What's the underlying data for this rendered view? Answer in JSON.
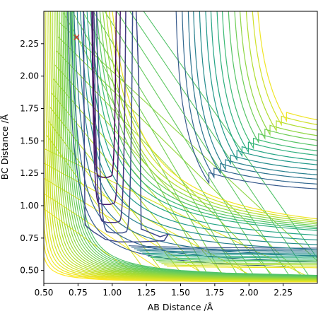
{
  "chart_data": {
    "type": "contour",
    "xlabel": "AB Distance /Å",
    "ylabel": "BC Distance /Å",
    "xlim": [
      0.5,
      2.5
    ],
    "ylim": [
      0.4,
      2.5
    ],
    "xticks": [
      "0.50",
      "0.75",
      "1.00",
      "1.25",
      "1.50",
      "1.75",
      "2.00",
      "2.25"
    ],
    "yticks": [
      "0.50",
      "0.75",
      "1.00",
      "1.25",
      "1.50",
      "1.75",
      "2.00",
      "2.25"
    ],
    "grid": false,
    "colormap": "viridis",
    "marker": {
      "symbol": "x",
      "color": "#d62728",
      "x": 0.74,
      "y": 2.3
    },
    "contours": {
      "lower_branch_asymptotes": [
        0.475,
        0.505,
        0.54,
        0.58,
        0.605,
        0.63,
        0.655,
        0.68
      ],
      "outer_levels_d": [
        0.85,
        0.92,
        0.99,
        1.05,
        1.12,
        1.19,
        1.25,
        1.32,
        1.38,
        1.45,
        1.52,
        1.58,
        1.65,
        1.72,
        1.78
      ],
      "inner_wells": [
        {
          "x_min": 0.95,
          "y_min": 1.22,
          "x_left": 0.84,
          "x_right": 1.03
        },
        {
          "x_min": 0.96,
          "y_min": 1.01,
          "x_left": 0.84,
          "x_right": 1.06
        },
        {
          "x_min": 1.0,
          "y_min": 0.87,
          "x_left": 0.83,
          "x_right": 1.1
        },
        {
          "x_min": 1.05,
          "y_min": 0.79,
          "x_left": 0.82,
          "x_right": 1.15
        }
      ],
      "saddle_contour": {
        "x_tip": 1.41,
        "y_tip": 0.78
      }
    }
  }
}
